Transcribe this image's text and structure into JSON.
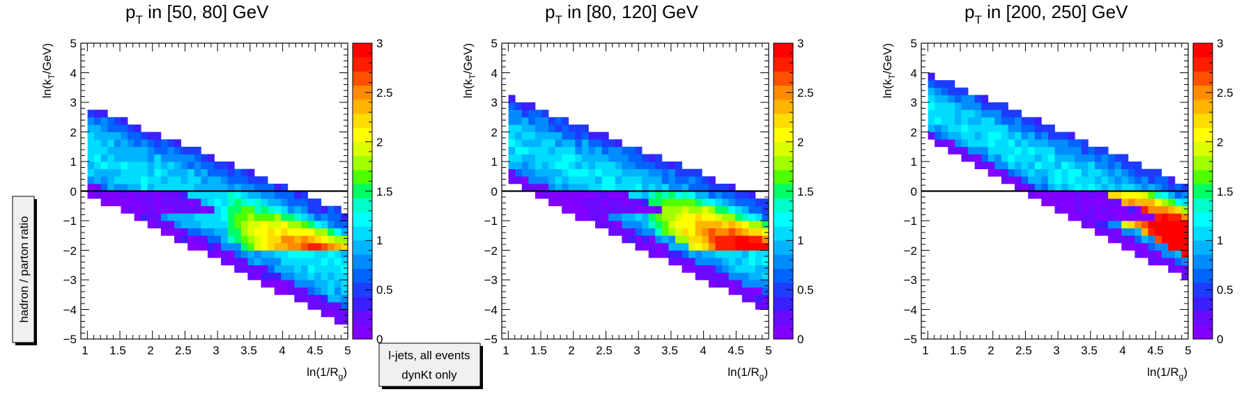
{
  "chart_data": [
    {
      "type": "heatmap",
      "title": "p",
      "title_sub": "T",
      "title_rest": " in [50, 80] GeV",
      "xlabel": "ln(1/R",
      "xlabel_sub": "g",
      "xlabel_end": ")",
      "ylabel": "ln(k",
      "ylabel_sub": "T",
      "ylabel_end": "/GeV)",
      "xlim": [
        0.9,
        5.0
      ],
      "ylim": [
        -5,
        5
      ],
      "zlim": [
        0,
        3
      ],
      "x_ticks": [
        "1",
        "1.5",
        "2",
        "2.5",
        "3",
        "3.5",
        "4",
        "4.5",
        "5"
      ],
      "y_ticks": [
        "−5",
        "−4",
        "−3",
        "−2",
        "−1",
        "0",
        "1",
        "2",
        "3",
        "4",
        "5"
      ],
      "z_ticks": [
        "0",
        "0.5",
        "1",
        "1.5",
        "2",
        "2.5",
        "3"
      ],
      "reference_line_y": 0,
      "band": {
        "upper_start": 2.9,
        "lower_start": -0.1,
        "slope": -0.9,
        "x_end": 5.0,
        "kink_y": -0.3
      }
    },
    {
      "type": "heatmap",
      "title": "p",
      "title_sub": "T",
      "title_rest": " in [80, 120] GeV",
      "xlabel": "ln(1/R",
      "xlabel_sub": "g",
      "xlabel_end": ")",
      "ylabel": "ln(k",
      "ylabel_sub": "T",
      "ylabel_end": "/GeV)",
      "xlim": [
        0.9,
        5.0
      ],
      "ylim": [
        -5,
        5
      ],
      "zlim": [
        0,
        3
      ],
      "x_ticks": [
        "1",
        "1.5",
        "2",
        "2.5",
        "3",
        "3.5",
        "4",
        "4.5",
        "5"
      ],
      "y_ticks": [
        "−5",
        "−4",
        "−3",
        "−2",
        "−1",
        "0",
        "1",
        "2",
        "3",
        "4",
        "5"
      ],
      "z_ticks": [
        "0",
        "0.5",
        "1",
        "1.5",
        "2",
        "2.5",
        "3"
      ],
      "reference_line_y": 0,
      "band": {
        "upper_start": 3.2,
        "lower_start": 0.3,
        "slope": -0.88,
        "x_end": 5.0,
        "kink_y": -0.3
      }
    },
    {
      "type": "heatmap",
      "title": "p",
      "title_sub": "T",
      "title_rest": " in [200, 250] GeV",
      "xlabel": "ln(1/R",
      "xlabel_sub": "g",
      "xlabel_end": ")",
      "ylabel": "ln(k",
      "ylabel_sub": "T",
      "ylabel_end": "/GeV)",
      "xlim": [
        0.9,
        5.0
      ],
      "ylim": [
        -5,
        5
      ],
      "zlim": [
        0,
        3
      ],
      "x_ticks": [
        "1",
        "1.5",
        "2",
        "2.5",
        "3",
        "3.5",
        "4",
        "4.5",
        "5"
      ],
      "y_ticks": [
        "−5",
        "−4",
        "−3",
        "−2",
        "−1",
        "0",
        "1",
        "2",
        "3",
        "4",
        "5"
      ],
      "z_ticks": [
        "0",
        "0.5",
        "1",
        "1.5",
        "2",
        "2.5",
        "3"
      ],
      "reference_line_y": 0,
      "band": {
        "upper_start": 4.0,
        "lower_start": 1.7,
        "slope": -0.95,
        "x_end": 5.0,
        "kink_y": -0.6
      }
    }
  ],
  "side_label": "hadron / parton ratio",
  "note": {
    "line1": "l-jets, all events",
    "line2": "dynKt only"
  },
  "palette": [
    "#8200ff",
    "#6a0aff",
    "#3c1eff",
    "#1e3cff",
    "#0064ff",
    "#008cff",
    "#00b4ff",
    "#00dcff",
    "#00ffff",
    "#00ffc8",
    "#00ff64",
    "#50ff00",
    "#a0ff00",
    "#dcff00",
    "#ffff00",
    "#ffdc00",
    "#ffb400",
    "#ff8c00",
    "#ff5000",
    "#ff1e00",
    "#ff0000"
  ]
}
